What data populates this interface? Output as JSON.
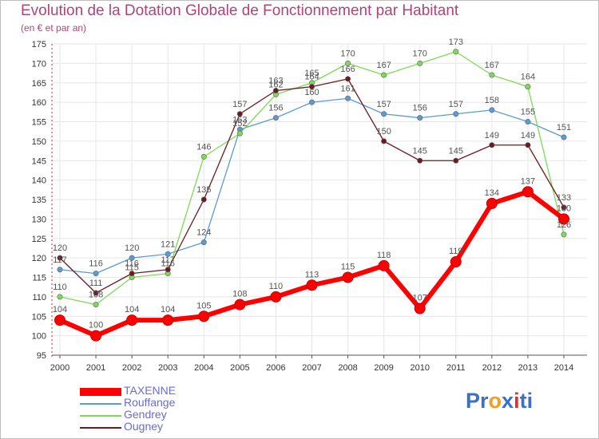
{
  "title": "Evolution de la Dotation Globale de Fonctionnement par Habitant",
  "subtitle": "(en € et par an)",
  "logo": {
    "parts": [
      "Pr",
      "o",
      "x",
      "i",
      "ti"
    ],
    "colors": [
      "#3b6fc9",
      "#f0a020",
      "#3b6fc9",
      "#e03030",
      "#3b6fc9"
    ]
  },
  "chart_data": {
    "type": "line",
    "title": "Evolution de la Dotation Globale de Fonctionnement par Habitant",
    "subtitle": "(en € et par an)",
    "xlabel": "",
    "ylabel": "",
    "ylim": [
      95,
      175
    ],
    "yticks": [
      95,
      100,
      105,
      110,
      115,
      120,
      125,
      130,
      135,
      140,
      145,
      150,
      155,
      160,
      165,
      170,
      175
    ],
    "categories": [
      "2000",
      "2001",
      "2002",
      "2003",
      "2004",
      "2005",
      "2006",
      "2007",
      "2008",
      "2009",
      "2010",
      "2011",
      "2012",
      "2013",
      "2014"
    ],
    "grid": true,
    "legend_position": "bottom-left",
    "series": [
      {
        "name": "TAXENNE",
        "color": "#ff0000",
        "values": [
          104,
          100,
          104,
          104,
          105,
          108,
          110,
          113,
          115,
          118,
          107,
          119,
          134,
          137,
          130
        ],
        "labels": [
          "104",
          "100",
          "104",
          "104",
          "105",
          "108",
          "110",
          "113",
          "115",
          "118",
          "107",
          "119",
          "134",
          "137",
          "130"
        ]
      },
      {
        "name": "Rouffange",
        "color": "#5b9bd5",
        "values": [
          117,
          116,
          120,
          121,
          124,
          153,
          156,
          160,
          161,
          157,
          156,
          157,
          158,
          155,
          151
        ],
        "labels": [
          "117",
          "116",
          "120",
          "121",
          "124",
          "153",
          "156",
          "160",
          "161",
          "157",
          "156",
          "157",
          "158",
          "155",
          "151"
        ]
      },
      {
        "name": "Gendrey",
        "color": "#7ed957",
        "values": [
          110,
          108,
          115,
          116,
          146,
          152,
          162,
          165,
          170,
          167,
          170,
          173,
          167,
          164,
          126
        ],
        "labels": [
          "110",
          "108",
          "115",
          "116",
          "146",
          "152",
          "162",
          "165",
          "170",
          "167",
          "170",
          "173",
          "167",
          "164",
          "126"
        ]
      },
      {
        "name": "Ougney",
        "color": "#6b1a22",
        "values": [
          120,
          111,
          116,
          117,
          135,
          157,
          163,
          164,
          166,
          150,
          145,
          145,
          149,
          149,
          133
        ],
        "labels": [
          "120",
          "111",
          "116",
          "117",
          "135",
          "157",
          "163",
          "164",
          "166",
          "150",
          "145",
          "145",
          "149",
          "149",
          "133"
        ]
      }
    ]
  }
}
